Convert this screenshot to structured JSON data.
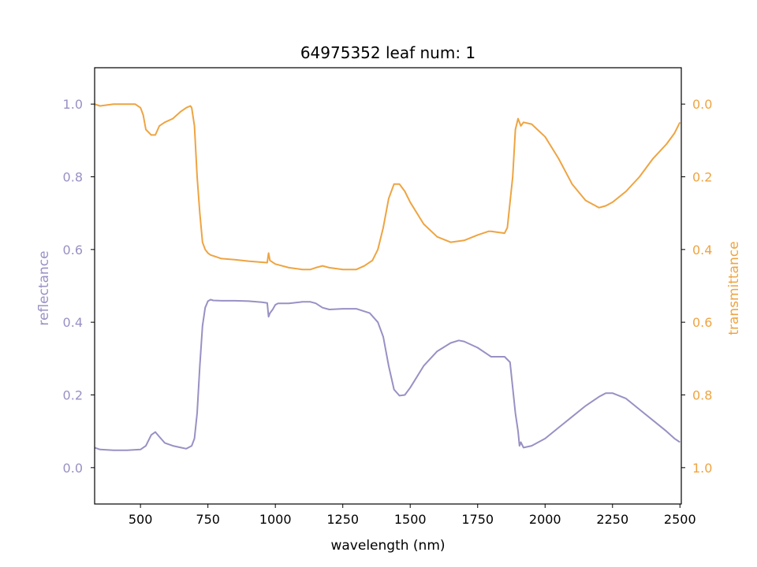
{
  "chart_data": {
    "type": "line",
    "title": "64975352 leaf num: 1",
    "xlabel": "wavelength (nm)",
    "ylabel_left": "reflectance",
    "ylabel_right": "transmittance",
    "xlim": [
      330,
      2505
    ],
    "ylim_left": [
      -0.1,
      1.1
    ],
    "ylim_right": [
      1.1,
      -0.1
    ],
    "right_axis_inverted": true,
    "grid": false,
    "legend": "none",
    "x_ticks": [
      500,
      750,
      1000,
      1250,
      1500,
      1750,
      2000,
      2250,
      2500
    ],
    "x_tick_labels": [
      "500",
      "750",
      "1000",
      "1250",
      "1500",
      "1750",
      "2000",
      "2250",
      "2500"
    ],
    "y_left_ticks": [
      0.0,
      0.2,
      0.4,
      0.6,
      0.8,
      1.0
    ],
    "y_left_tick_labels": [
      "0.0",
      "0.2",
      "0.4",
      "0.6",
      "0.8",
      "1.0"
    ],
    "y_right_ticks": [
      0.0,
      0.2,
      0.4,
      0.6,
      0.8,
      1.0
    ],
    "y_right_tick_labels": [
      "0.0",
      "0.2",
      "0.4",
      "0.6",
      "0.8",
      "1.0"
    ],
    "colors": {
      "reflectance": "#9891c4",
      "transmittance": "#eea441",
      "axes": "#000000"
    },
    "series": [
      {
        "axis": "left",
        "x": [
          330,
          350,
          400,
          450,
          500,
          520,
          540,
          555,
          570,
          590,
          620,
          650,
          670,
          690,
          700,
          710,
          720,
          730,
          740,
          750,
          760,
          770,
          800,
          850,
          900,
          950,
          970,
          975,
          980,
          990,
          1000,
          1010,
          1050,
          1100,
          1130,
          1150,
          1175,
          1200,
          1250,
          1300,
          1350,
          1380,
          1400,
          1420,
          1440,
          1460,
          1480,
          1500,
          1550,
          1600,
          1650,
          1680,
          1700,
          1750,
          1790,
          1800,
          1850,
          1870,
          1880,
          1890,
          1900,
          1905,
          1910,
          1920,
          1950,
          2000,
          2050,
          2100,
          2150,
          2200,
          2225,
          2250,
          2300,
          2350,
          2400,
          2450,
          2480,
          2500
        ],
        "y": [
          0.055,
          0.05,
          0.048,
          0.048,
          0.05,
          0.06,
          0.09,
          0.098,
          0.085,
          0.068,
          0.06,
          0.055,
          0.052,
          0.06,
          0.08,
          0.15,
          0.28,
          0.39,
          0.44,
          0.458,
          0.462,
          0.46,
          0.459,
          0.459,
          0.458,
          0.455,
          0.453,
          0.415,
          0.425,
          0.435,
          0.448,
          0.452,
          0.452,
          0.456,
          0.456,
          0.452,
          0.44,
          0.435,
          0.437,
          0.437,
          0.425,
          0.4,
          0.36,
          0.28,
          0.215,
          0.198,
          0.2,
          0.22,
          0.28,
          0.32,
          0.343,
          0.35,
          0.347,
          0.33,
          0.31,
          0.305,
          0.305,
          0.29,
          0.22,
          0.15,
          0.1,
          0.06,
          0.07,
          0.055,
          0.06,
          0.08,
          0.11,
          0.14,
          0.17,
          0.195,
          0.205,
          0.205,
          0.19,
          0.16,
          0.13,
          0.1,
          0.08,
          0.07
        ]
      },
      {
        "axis": "right",
        "x": [
          330,
          350,
          400,
          450,
          480,
          500,
          510,
          520,
          540,
          555,
          570,
          590,
          620,
          650,
          670,
          685,
          690,
          700,
          710,
          720,
          730,
          740,
          750,
          760,
          780,
          800,
          850,
          900,
          950,
          970,
          975,
          980,
          1000,
          1010,
          1050,
          1100,
          1130,
          1150,
          1175,
          1200,
          1250,
          1300,
          1330,
          1360,
          1380,
          1400,
          1420,
          1440,
          1460,
          1480,
          1500,
          1550,
          1600,
          1650,
          1700,
          1750,
          1790,
          1800,
          1850,
          1860,
          1880,
          1890,
          1900,
          1910,
          1920,
          1950,
          2000,
          2050,
          2100,
          2150,
          2200,
          2225,
          2250,
          2300,
          2350,
          2400,
          2450,
          2480,
          2500
        ],
        "y": [
          0.0,
          0.005,
          0.0,
          0.0,
          0.0,
          0.01,
          0.03,
          0.07,
          0.085,
          0.085,
          0.06,
          0.05,
          0.04,
          0.02,
          0.01,
          0.005,
          0.01,
          0.06,
          0.2,
          0.3,
          0.38,
          0.4,
          0.41,
          0.415,
          0.42,
          0.425,
          0.428,
          0.432,
          0.435,
          0.436,
          0.41,
          0.43,
          0.44,
          0.442,
          0.45,
          0.455,
          0.455,
          0.45,
          0.445,
          0.45,
          0.455,
          0.455,
          0.445,
          0.43,
          0.4,
          0.34,
          0.26,
          0.22,
          0.22,
          0.24,
          0.27,
          0.33,
          0.365,
          0.38,
          0.375,
          0.36,
          0.35,
          0.35,
          0.355,
          0.34,
          0.2,
          0.07,
          0.04,
          0.06,
          0.05,
          0.055,
          0.09,
          0.15,
          0.22,
          0.265,
          0.285,
          0.28,
          0.27,
          0.24,
          0.2,
          0.15,
          0.11,
          0.08,
          0.05
        ]
      }
    ]
  }
}
